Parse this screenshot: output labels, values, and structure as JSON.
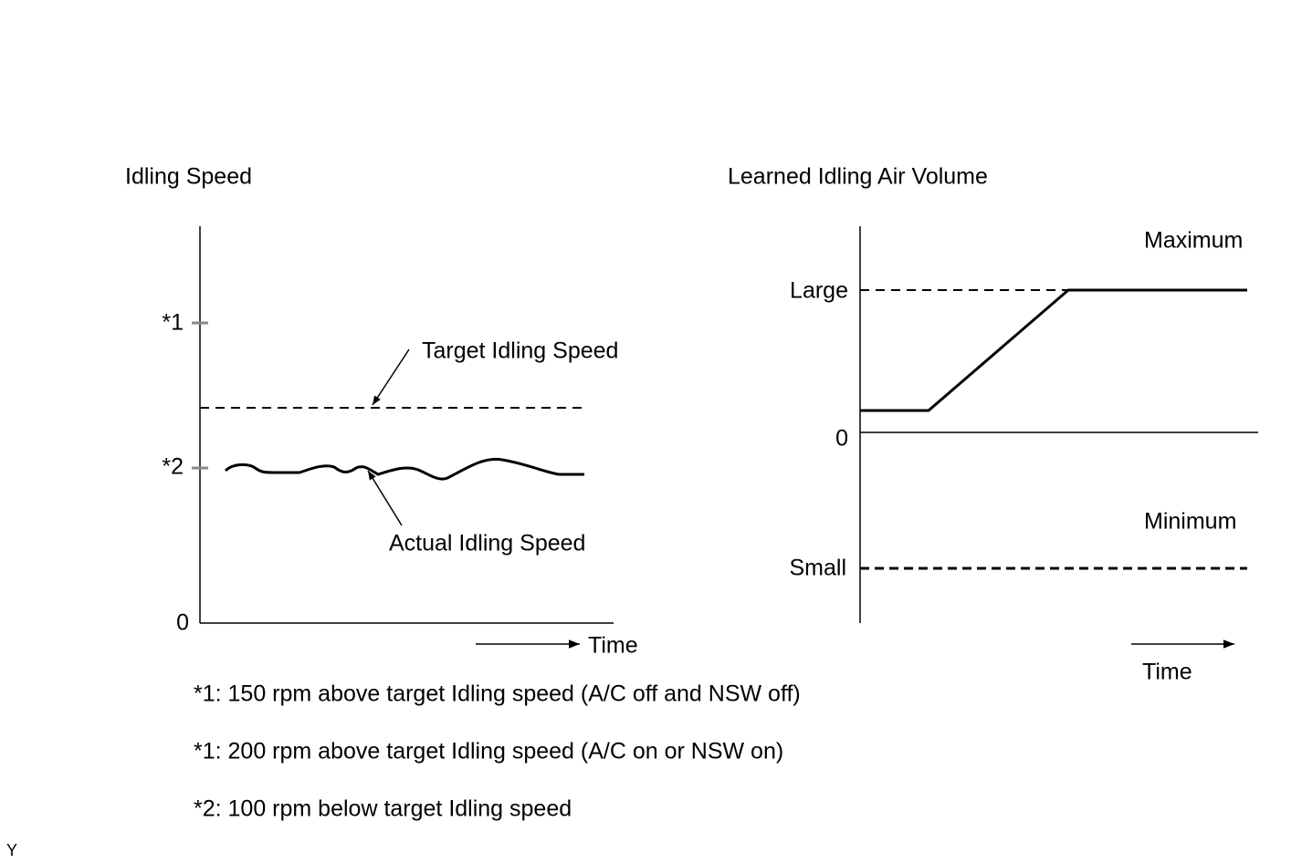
{
  "left_graph": {
    "title": "Idling Speed",
    "ticks": [
      "*1",
      "*2",
      "0"
    ],
    "target_label": "Target Idling Speed",
    "actual_label": "Actual Idling Speed",
    "x_label": "Time"
  },
  "right_graph": {
    "title": "Learned Idling Air Volume",
    "maximum_label": "Maximum",
    "minimum_label": "Minimum",
    "ticks": [
      "Large",
      "0",
      "Small"
    ],
    "x_label": "Time"
  },
  "notes": [
    "*1: 150 rpm above target Idling speed (A/C off and NSW off)",
    "*1: 200 rpm above target Idling speed (A/C on or NSW on)",
    "*2: 100 rpm below target Idling speed"
  ],
  "footer_id": "Y"
}
